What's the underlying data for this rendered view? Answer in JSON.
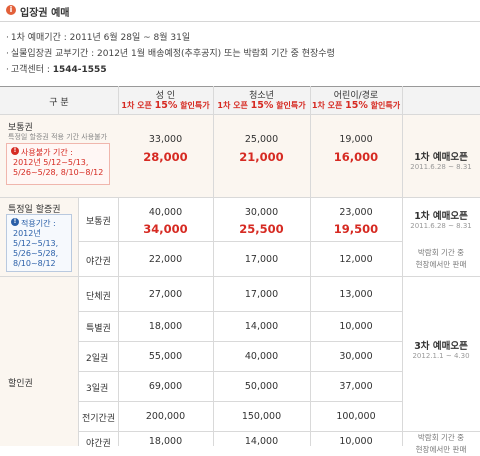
{
  "header": {
    "icon": "circle-info-icon",
    "title": "입장권 예매"
  },
  "info": [
    {
      "text": "1차 예매기간 : 2011년 6월 28일 ~ 8월 31일",
      "bold": ""
    },
    {
      "text": "실물입장권 교부기간 : 2012년 1월 배송예정(추후공지) 또는 박람회 기간 중 현장수령",
      "bold": ""
    },
    {
      "text": "고객센터 : ",
      "bold": "1544-1555"
    }
  ],
  "table": {
    "header": {
      "category": "구 분",
      "adult": "성 인",
      "youth": "청소년",
      "child": "어린이/경로",
      "discount_prefix": "1차 오픈 ",
      "discount_pct": "15%",
      "discount_suffix": " 할인특가"
    },
    "regular": {
      "label": "보통권",
      "sub": "특정일 할증권 적용 기간 사용불가",
      "box_title": "사용불가 기간 :",
      "box_dates": "2012년 5/12~5/13,\n5/26~5/28, 8/10~8/12",
      "adult": "33,000",
      "adult_sale": "28,000",
      "youth": "25,000",
      "youth_sale": "21,000",
      "child": "19,000",
      "child_sale": "16,000",
      "sale": "1차 예매오픈",
      "sale_period": "2011.6.28 ~ 8.31"
    },
    "premium": {
      "label": "특정일 할증권",
      "box_title": "적용기간 :",
      "box_dates": "2012년\n5/12~5/13,\n5/26~5/28,\n8/10~8/12",
      "rows": [
        {
          "name": "보통권",
          "adult": "40,000",
          "adult_sale": "34,000",
          "youth": "30,000",
          "youth_sale": "25,500",
          "child": "23,000",
          "child_sale": "19,500"
        },
        {
          "name": "야간권",
          "adult": "22,000",
          "youth": "17,000",
          "child": "12,000"
        }
      ],
      "sale": "1차 예매오픈",
      "sale_period": "2011.6.28 ~ 8.31",
      "note": "박람회 기간 중\n현장에서만 판매"
    },
    "discount": {
      "label": "할인권",
      "rows": [
        {
          "name": "단체권",
          "adult": "27,000",
          "youth": "17,000",
          "child": "13,000"
        },
        {
          "name": "특별권",
          "adult": "18,000",
          "youth": "14,000",
          "child": "10,000"
        },
        {
          "name": "2일권",
          "adult": "55,000",
          "youth": "40,000",
          "child": "30,000"
        },
        {
          "name": "3일권",
          "adult": "69,000",
          "youth": "50,000",
          "child": "37,000"
        },
        {
          "name": "전기간권",
          "adult": "200,000",
          "youth": "150,000",
          "child": "100,000"
        },
        {
          "name": "야간권",
          "adult": "18,000",
          "youth": "14,000",
          "child": "10,000"
        }
      ],
      "sale": "3차 예매오픈",
      "sale_period": "2012.1.1 ~ 4.30",
      "note": "박람회 기간 중\n현장에서만 판매"
    }
  },
  "colors": {
    "accent_red": "#d62a22",
    "header_bg": "#f3f3f3",
    "row_bg": "#fbf6f0"
  }
}
